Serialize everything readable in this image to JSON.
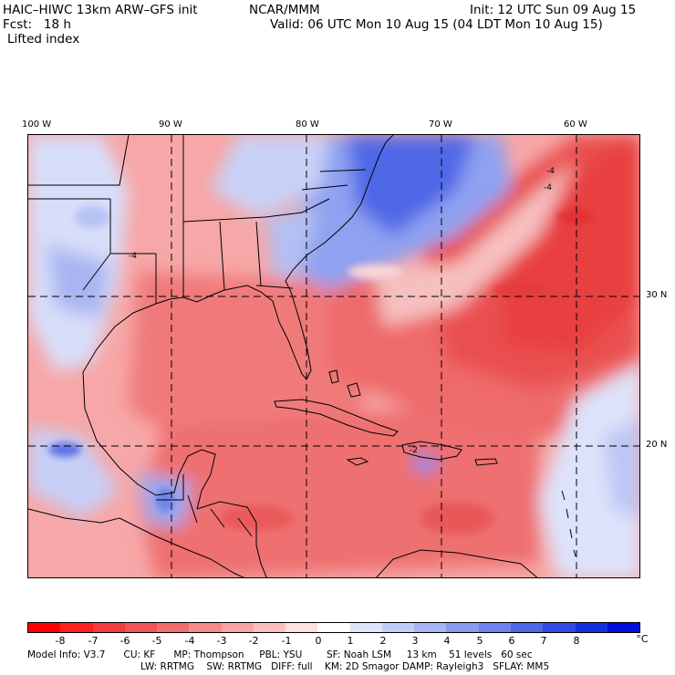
{
  "header": {
    "model": "HAIC–HIWC 13km ARW–GFS init",
    "org": "NCAR/MMM",
    "init": "Init: 12 UTC Sun 09 Aug 15",
    "fcst": "Fcst:   18 h",
    "valid": "Valid: 06 UTC Mon 10 Aug 15 (04 LDT Mon 10 Aug 15)",
    "field": "Lifted index"
  },
  "map": {
    "lon_labels": [
      "100 W",
      "90 W",
      "80 W",
      "70 W",
      "60 W"
    ],
    "lat_labels": [
      "30 N",
      "20 N"
    ],
    "contour_labels": [
      "-4",
      "-4",
      "-4",
      "-2"
    ]
  },
  "colorbar": {
    "labels": [
      "-8",
      "-7",
      "-6",
      "-5",
      "-4",
      "-3",
      "-2",
      "-1",
      "0",
      "1",
      "2",
      "3",
      "4",
      "5",
      "6",
      "7",
      "8"
    ],
    "unit": "°C",
    "colors": [
      "#ff0000",
      "#ff2020",
      "#f53c3c",
      "#f05555",
      "#f26e6e",
      "#f58a8a",
      "#f8a4a4",
      "#fac0c0",
      "#fde0e0",
      "#ffffff",
      "#dde4fa",
      "#c2cdf6",
      "#a6b4f2",
      "#8a9bee",
      "#6d82ea",
      "#4f66e6",
      "#3249e3",
      "#1630e0",
      "#0010dc"
    ]
  },
  "info": {
    "line1": "Model Info: V3.7      CU: KF      MP: Thompson     PBL: YSU        SF: Noah LSM     13 km    51 levels   60 sec",
    "line2": "LW: RRTMG    SW: RRTMG   DIFF: full    KM: 2D Smagor DAMP: Rayleigh3   SFLAY: MM5"
  }
}
